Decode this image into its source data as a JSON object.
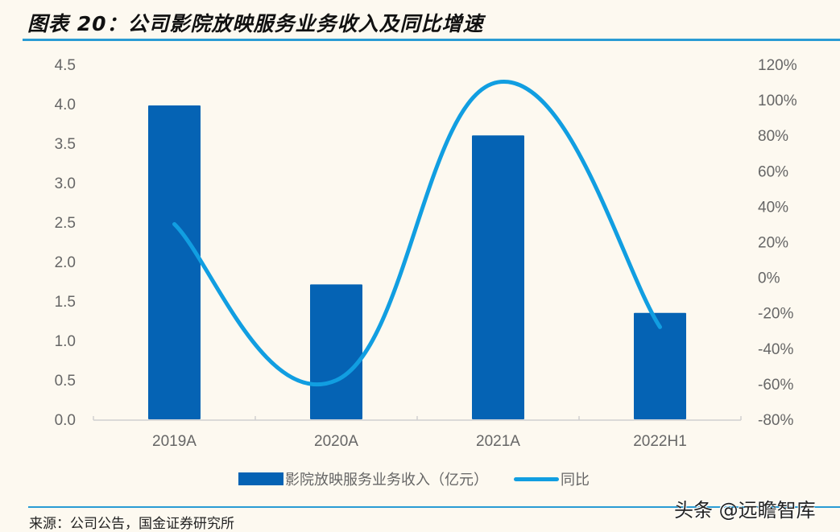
{
  "header": {
    "title": "图表 20：公司影院放映服务业务收入及同比增速"
  },
  "legend": {
    "bar_label": "影院放映服务业务收入（亿元）",
    "line_label": "同比"
  },
  "footer": {
    "source": "来源：公司公告，国金证券研究所",
    "watermark": "头条 @远瞻智库"
  },
  "colors": {
    "bar": "#0563b4",
    "line": "#119ee1",
    "rule": "#2a9bd4",
    "axis_text": "#666666",
    "background": "#fdf9f0"
  },
  "chart_data": {
    "type": "bar",
    "title": "公司影院放映服务业务收入及同比增速",
    "categories": [
      "2019A",
      "2020A",
      "2021A",
      "2022H1"
    ],
    "series": [
      {
        "name": "影院放映服务业务收入（亿元）",
        "type": "bar",
        "axis": "left",
        "values": [
          3.98,
          1.71,
          3.6,
          1.35
        ]
      },
      {
        "name": "同比",
        "type": "line",
        "smooth": true,
        "axis": "right",
        "unit": "%",
        "values": [
          30,
          -58,
          110,
          -28
        ]
      }
    ],
    "y_left": {
      "label": "",
      "ylim": [
        0,
        4.5
      ],
      "ticks": [
        "0.0",
        "0.5",
        "1.0",
        "1.5",
        "2.0",
        "2.5",
        "3.0",
        "3.5",
        "4.0",
        "4.5"
      ]
    },
    "y_right": {
      "label": "",
      "ylim": [
        -80,
        120
      ],
      "ticks": [
        "-80%",
        "-60%",
        "-40%",
        "-20%",
        "0%",
        "20%",
        "40%",
        "60%",
        "80%",
        "100%",
        "120%"
      ]
    },
    "xlabel": "",
    "grid": false,
    "legend_position": "bottom"
  }
}
